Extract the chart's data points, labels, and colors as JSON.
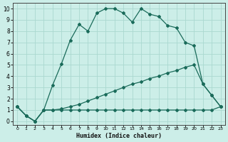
{
  "xlabel": "Humidex (Indice chaleur)",
  "xlim_min": -0.5,
  "xlim_max": 23.5,
  "ylim_min": -0.3,
  "ylim_max": 10.5,
  "xticks": [
    0,
    1,
    2,
    3,
    4,
    5,
    6,
    7,
    8,
    9,
    10,
    11,
    12,
    13,
    14,
    15,
    16,
    17,
    18,
    19,
    20,
    21,
    22,
    23
  ],
  "yticks": [
    0,
    1,
    2,
    3,
    4,
    5,
    6,
    7,
    8,
    9,
    10
  ],
  "line_color": "#1a6b5a",
  "bg_color": "#cceee8",
  "grid_color": "#aad8d0",
  "line1_x": [
    0,
    1,
    2,
    3,
    4,
    5,
    6,
    7,
    8,
    9,
    10,
    11,
    12,
    13,
    14,
    15,
    16,
    17,
    18,
    19,
    20,
    21,
    22,
    23
  ],
  "line1_y": [
    1.3,
    0.5,
    0.0,
    1.0,
    3.2,
    5.1,
    7.2,
    8.6,
    8.0,
    9.6,
    10.0,
    10.0,
    9.6,
    8.8,
    10.0,
    9.5,
    9.3,
    8.5,
    8.3,
    7.0,
    6.7,
    3.3,
    2.3,
    1.3
  ],
  "line2_x": [
    0,
    1,
    2,
    3,
    4,
    5,
    6,
    7,
    8,
    9,
    10,
    11,
    12,
    13,
    14,
    15,
    16,
    17,
    18,
    19,
    20,
    21,
    22,
    23
  ],
  "line2_y": [
    1.3,
    0.5,
    0.0,
    1.0,
    1.0,
    1.0,
    1.0,
    1.0,
    1.0,
    1.0,
    1.0,
    1.0,
    1.0,
    1.0,
    1.0,
    1.0,
    1.0,
    1.0,
    1.0,
    1.0,
    1.0,
    1.0,
    1.0,
    1.3
  ],
  "line3_x": [
    0,
    1,
    2,
    3,
    4,
    5,
    6,
    7,
    8,
    9,
    10,
    11,
    12,
    13,
    14,
    15,
    16,
    17,
    18,
    19,
    20,
    21,
    22,
    23
  ],
  "line3_y": [
    1.3,
    0.5,
    0.0,
    1.0,
    1.0,
    1.1,
    1.3,
    1.5,
    1.8,
    2.1,
    2.4,
    2.7,
    3.0,
    3.3,
    3.5,
    3.8,
    4.0,
    4.3,
    4.5,
    4.8,
    5.0,
    3.3,
    2.3,
    1.3
  ]
}
